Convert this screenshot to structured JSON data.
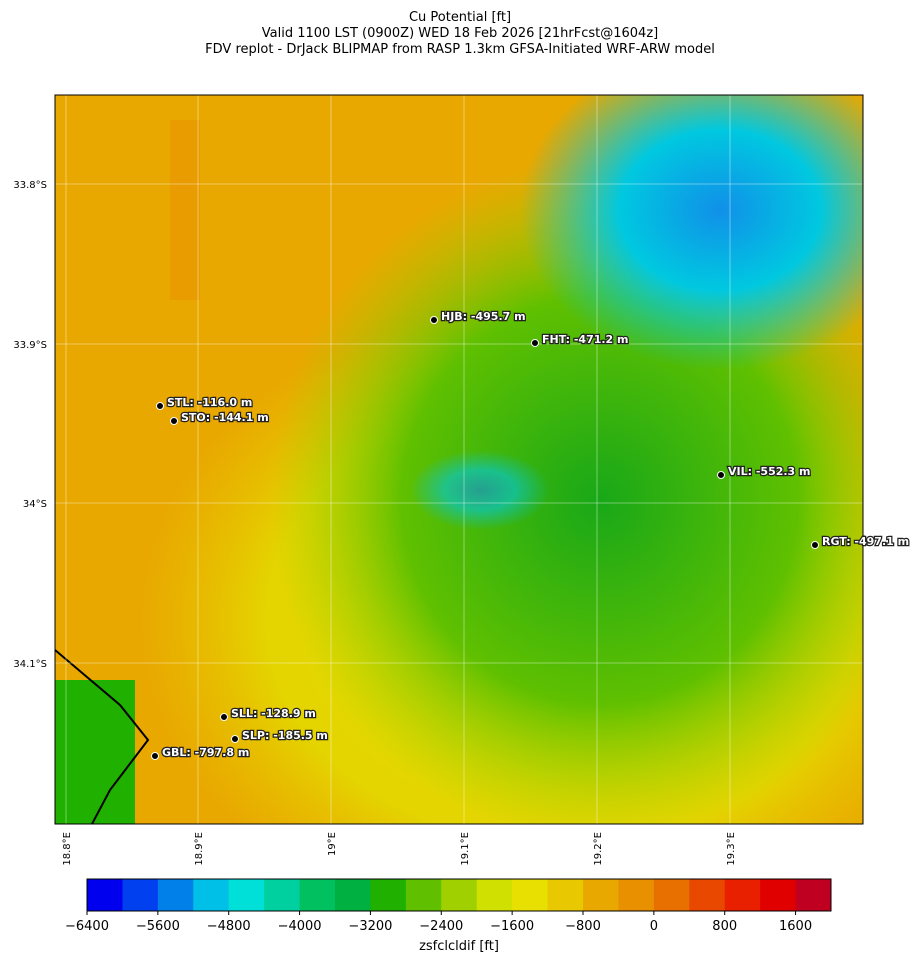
{
  "header": {
    "title_lines": [
      "Cu Potential [ft]",
      "Valid 1100 LST (0900Z) WED 18 Feb 2026 [21hrFcst@1604z]",
      "FDV replot - DrJack BLIPMAP from RASP 1.3km GFSA-Initiated WRF-ARW model"
    ]
  },
  "map": {
    "lat_ticks": [
      "33.8°S",
      "33.9°S",
      "34°S",
      "34.1°S"
    ],
    "lon_ticks": [
      "18.8°E",
      "18.9°E",
      "19°E",
      "19.1°E",
      "19.2°E",
      "19.3°E"
    ],
    "stations": [
      "HJB: -495.7 m",
      "FHT: -471.2 m",
      "STL: -116.0 m",
      "STO: -144.1 m",
      "VIL: -552.3 m",
      "RGT: -497.1 m",
      "SLL: -128.9 m",
      "SLP: -185.5 m",
      "GBL: -797.8 m"
    ]
  },
  "colorbar": {
    "label": "zsfclcldif [ft]",
    "lim": [
      -6400,
      2000
    ],
    "ticks": [
      {
        "value": -6400,
        "label": "−6400"
      },
      {
        "value": -5600,
        "label": "−5600"
      },
      {
        "value": -4800,
        "label": "−4800"
      },
      {
        "value": -4000,
        "label": "−4000"
      },
      {
        "value": -3200,
        "label": "−3200"
      },
      {
        "value": -2400,
        "label": "−2400"
      },
      {
        "value": -1600,
        "label": "−1600"
      },
      {
        "value": -800,
        "label": "−800"
      },
      0,
      800,
      1600
    ],
    "colors": [
      "#0000ef",
      "#0040ef",
      "#0080e8",
      "#00c0e8",
      "#00e0d8",
      "#00d0a0",
      "#00c060",
      "#00b040",
      "#20b000",
      "#60c000",
      "#a0d000",
      "#d0e000",
      "#e8e000",
      "#e8c800",
      "#e8a800",
      "#e89000",
      "#e87000",
      "#e84800",
      "#e82000",
      "#e00000",
      "#c00020"
    ]
  }
}
